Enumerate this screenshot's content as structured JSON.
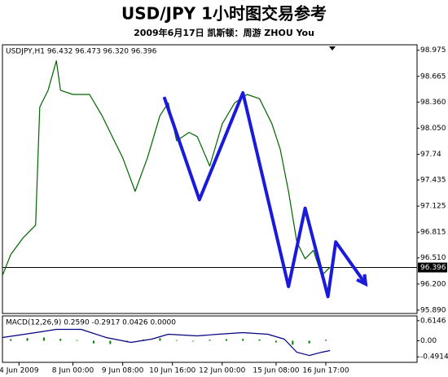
{
  "chart_data": [
    {
      "type": "line",
      "title": "USD/JPY 1小时图交易参考",
      "subtitle": "2009年6月17日  凯斯顿：周游 ZHOU You",
      "header": "USDJPY,H1  96.432 96.473 96.320 96.396",
      "last_price": 96.396,
      "xlim": [
        0,
        100
      ],
      "ylim": [
        95.85,
        99.04
      ],
      "xticks": [
        {
          "value": 4,
          "label": "4 Jun 2009"
        },
        {
          "value": 17,
          "label": "8 Jun 00:00"
        },
        {
          "value": 29,
          "label": "9 Jun 08:00"
        },
        {
          "value": 41,
          "label": "10 Jun 16:00"
        },
        {
          "value": 53,
          "label": "12 Jun 00:00"
        },
        {
          "value": 66,
          "label": "15 Jun 08:00"
        },
        {
          "value": 78,
          "label": "16 Jun 17:00"
        }
      ],
      "yticks": [
        98.975,
        98.665,
        {
          "value": 98.36,
          "label": "98.360"
        },
        {
          "value": 98.05,
          "label": "98.050"
        },
        97.74,
        97.435,
        97.125,
        96.815,
        {
          "value": 96.51,
          "label": "96.510"
        },
        {
          "value": 96.2,
          "label": "96.200"
        },
        {
          "value": 95.89,
          "label": "95.890"
        }
      ],
      "x": [
        0,
        2,
        5,
        8,
        9,
        11,
        13,
        14,
        17,
        21,
        24,
        26,
        29,
        32,
        35,
        38,
        40,
        42,
        45,
        47,
        50,
        53,
        56,
        59,
        62,
        65,
        67,
        69,
        71,
        73,
        75,
        77,
        79
      ],
      "values": [
        96.3,
        96.55,
        96.75,
        96.9,
        98.3,
        98.5,
        98.85,
        98.5,
        98.45,
        98.45,
        98.2,
        98.0,
        97.7,
        97.3,
        97.7,
        98.2,
        98.35,
        97.9,
        98.0,
        97.95,
        97.6,
        98.1,
        98.35,
        98.45,
        98.4,
        98.1,
        97.8,
        97.3,
        96.7,
        96.5,
        96.6,
        96.3,
        96.4
      ],
      "color": "#006400",
      "arrow": {
        "x": [
          39,
          47.5,
          58,
          69,
          73,
          78.5,
          80.4,
          87.6
        ],
        "values": [
          98.42,
          97.2,
          98.47,
          96.17,
          97.1,
          96.05,
          96.7,
          96.2
        ],
        "color": "#1a1adc"
      }
    },
    {
      "type": "macd",
      "header": "MACD(12,26,9) 0.2590 -0.2917 0.0426 0.0000",
      "xlim": [
        0,
        100
      ],
      "ylim": [
        -0.66,
        0.76
      ],
      "yticks": [
        0.6146,
        {
          "value": 0,
          "label": "0.00"
        },
        -0.4914
      ],
      "x": [
        0,
        8,
        13,
        19,
        25,
        31,
        36,
        40,
        47,
        52,
        58,
        64,
        68,
        71,
        74,
        77,
        79
      ],
      "values": [
        0.1,
        0.25,
        0.35,
        0.35,
        0.1,
        -0.05,
        0.05,
        0.2,
        0.15,
        0.2,
        0.25,
        0.2,
        0.05,
        -0.35,
        -0.45,
        -0.35,
        -0.3
      ],
      "color": "#000080",
      "hist_x": [
        2,
        6,
        10,
        14,
        18,
        22,
        26,
        30,
        34,
        38,
        42,
        46,
        50,
        54,
        58,
        62,
        66,
        70,
        74,
        78
      ],
      "hist": [
        0.05,
        0.08,
        0.1,
        0.06,
        0.02,
        -0.08,
        -0.1,
        -0.04,
        0.04,
        0.08,
        0.02,
        -0.02,
        0.03,
        0.05,
        0.06,
        0.04,
        -0.05,
        -0.12,
        -0.08,
        0.03
      ],
      "hist_color": "#008000"
    }
  ]
}
